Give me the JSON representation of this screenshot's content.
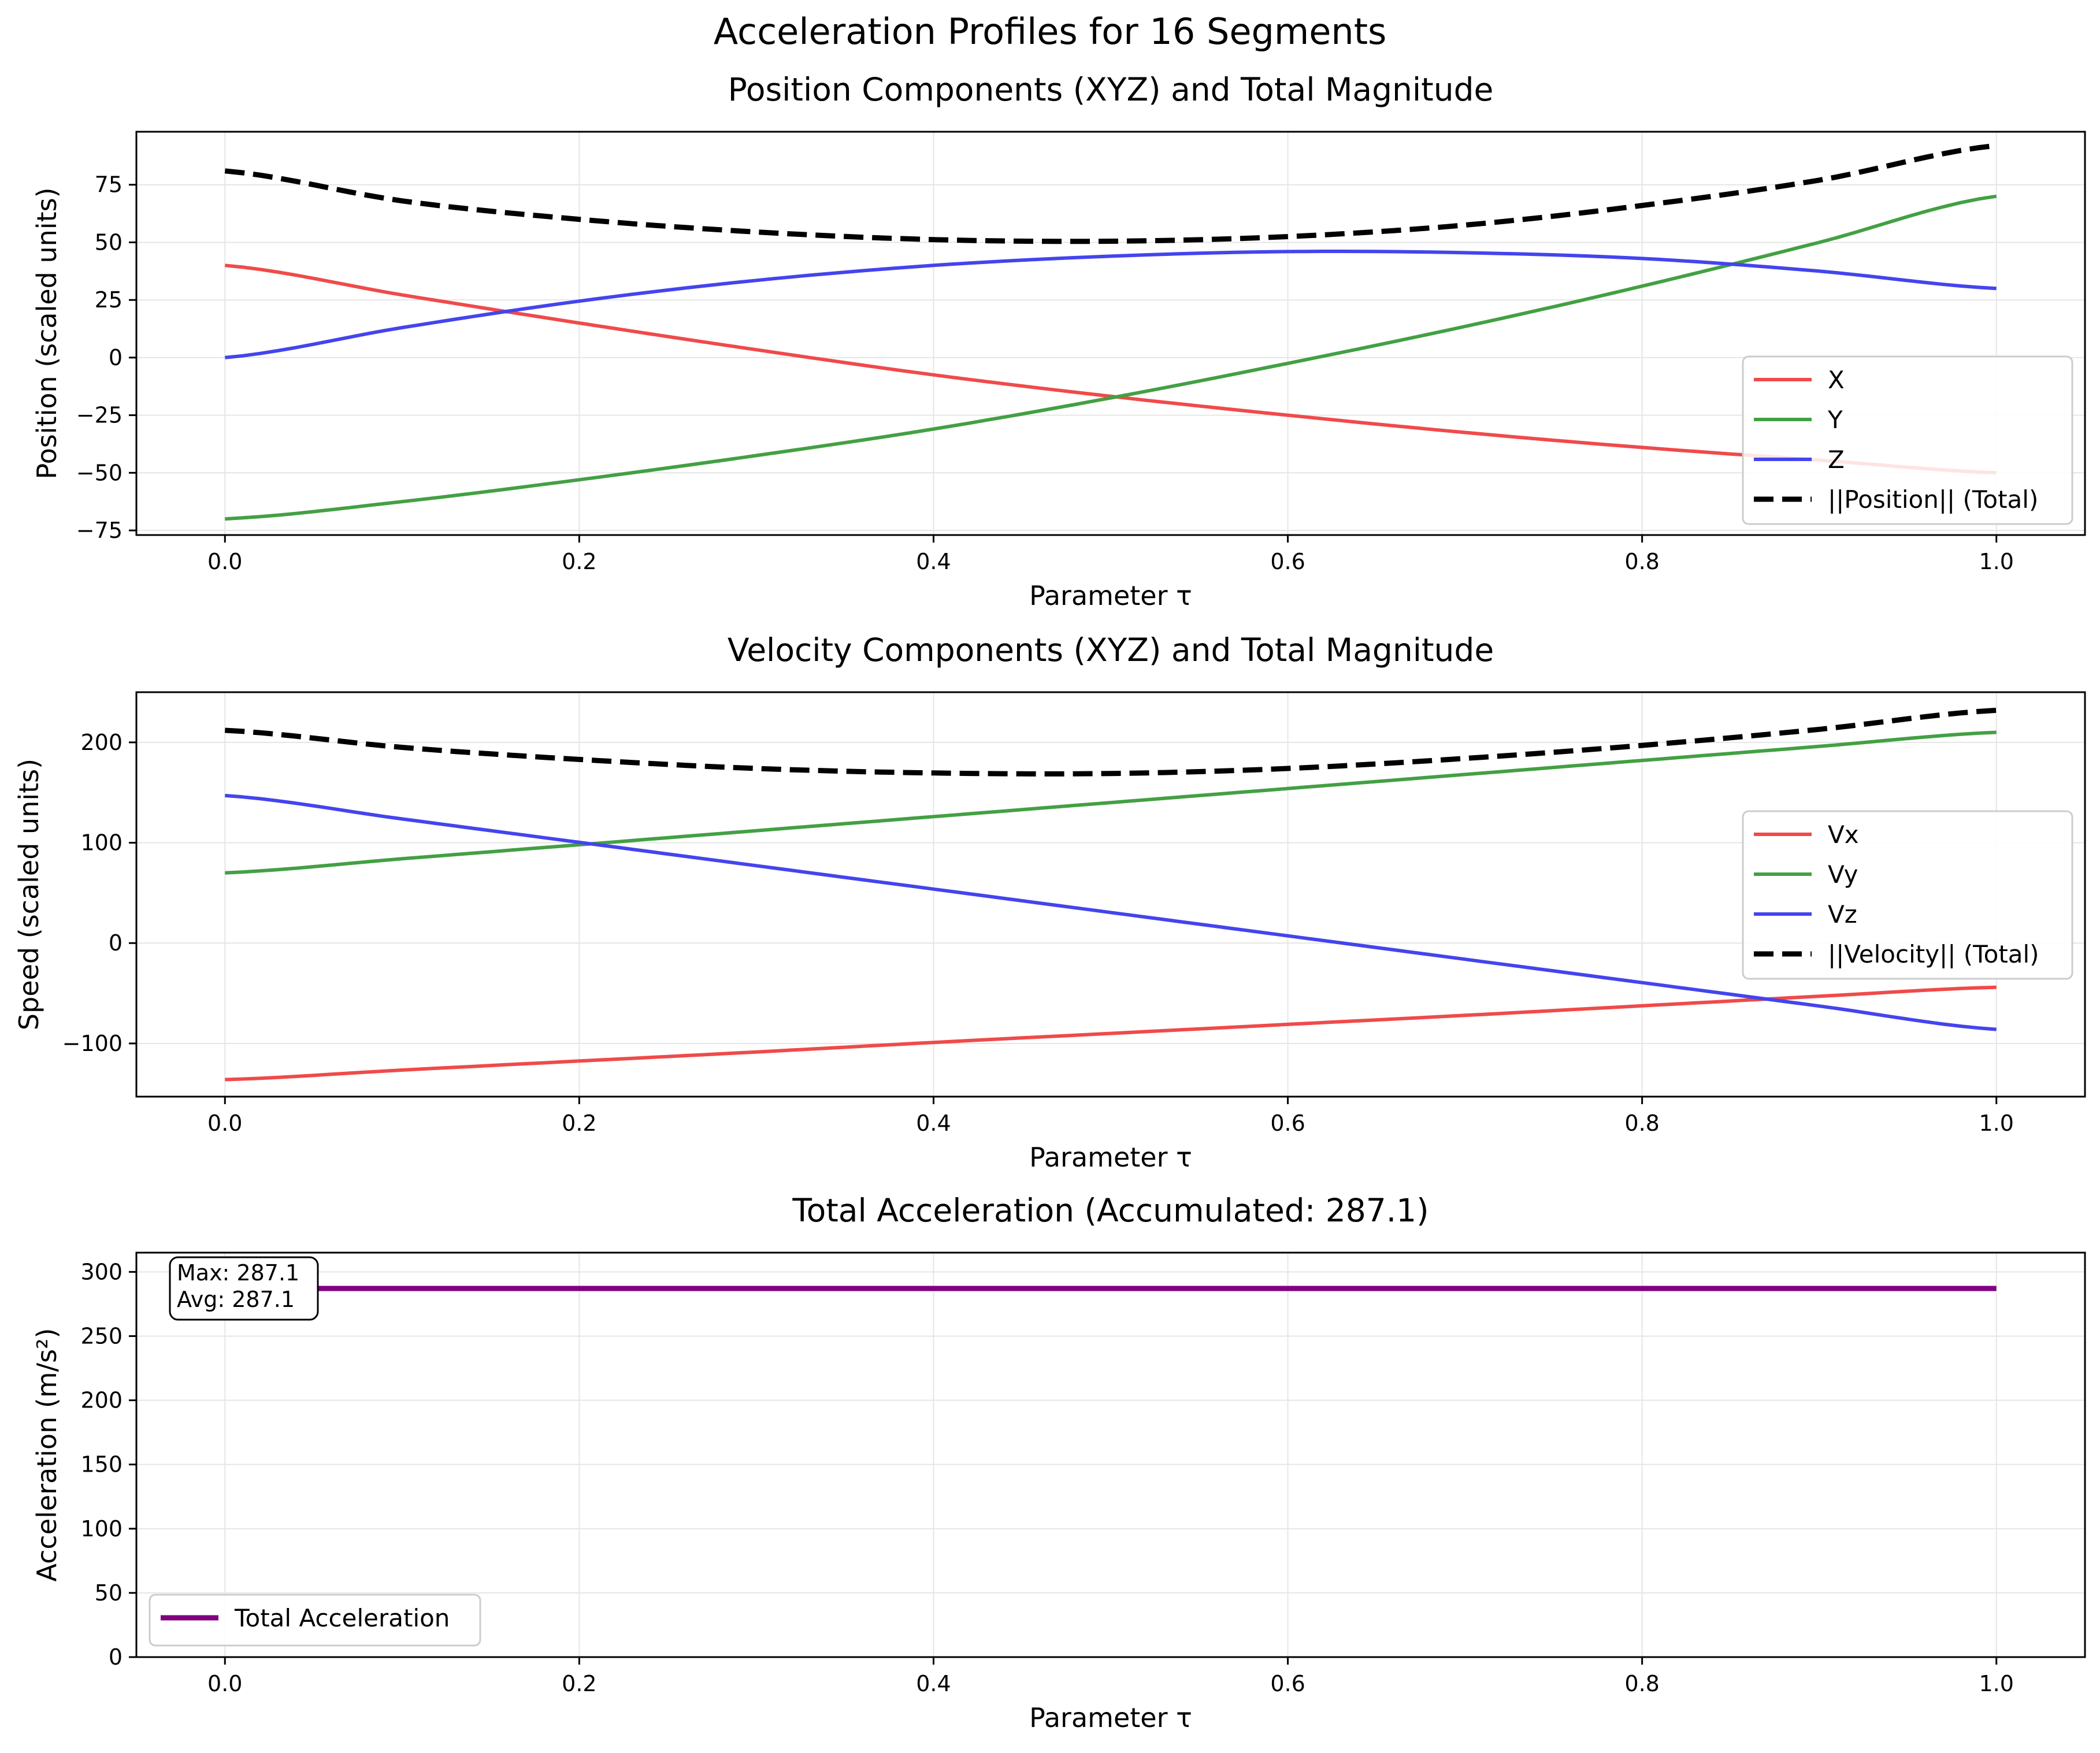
{
  "figure": {
    "suptitle": "Acceleration Profiles for 16 Segments"
  },
  "chart_data": [
    {
      "type": "line",
      "title": "Position Components (XYZ) and Total Magnitude",
      "xlabel": "Parameter τ",
      "ylabel": "Position (scaled units)",
      "xlim": [
        -0.05,
        1.05
      ],
      "ylim": [
        -77,
        98
      ],
      "xticks": [
        0.0,
        0.2,
        0.4,
        0.6,
        0.8,
        1.0
      ],
      "xtick_labels": [
        "0.0",
        "0.2",
        "0.4",
        "0.6",
        "0.8",
        "1.0"
      ],
      "yticks": [
        -75,
        -50,
        -25,
        0,
        25,
        50,
        75
      ],
      "ytick_labels": [
        "−75",
        "−50",
        "−25",
        "0",
        "25",
        "50",
        "75"
      ],
      "grid": true,
      "legend_position": "lower-right",
      "x": [
        0.0,
        0.1,
        0.2,
        0.3,
        0.4,
        0.5,
        0.6,
        0.7,
        0.8,
        0.9,
        1.0
      ],
      "series": [
        {
          "name": "X",
          "color": "#f04a4a",
          "style": "solid",
          "values": [
            40,
            27.2,
            15,
            3.4,
            -7.5,
            -16.8,
            -25,
            -32.5,
            -39,
            -44.5,
            -50
          ]
        },
        {
          "name": "Y",
          "color": "#43a043",
          "style": "solid",
          "values": [
            -70,
            -62.5,
            -53,
            -42.5,
            -31,
            -17.5,
            -2.5,
            13.5,
            31,
            50,
            70
          ]
        },
        {
          "name": "Z",
          "color": "#4444ee",
          "style": "solid",
          "values": [
            0,
            13,
            24.5,
            33.5,
            40,
            44,
            46,
            45.5,
            43,
            37.5,
            30
          ]
        },
        {
          "name": "||Position|| (Total)",
          "color": "#000000",
          "style": "dashed",
          "values": [
            81,
            68,
            60,
            54.5,
            51.2,
            50.5,
            52.5,
            57.5,
            66,
            77,
            92
          ]
        }
      ]
    },
    {
      "type": "line",
      "title": "Velocity Components (XYZ) and Total Magnitude",
      "xlabel": "Parameter τ",
      "ylabel": "Speed (scaled units)",
      "xlim": [
        -0.05,
        1.05
      ],
      "ylim": [
        -153,
        250
      ],
      "xticks": [
        0.0,
        0.2,
        0.4,
        0.6,
        0.8,
        1.0
      ],
      "xtick_labels": [
        "0.0",
        "0.2",
        "0.4",
        "0.6",
        "0.8",
        "1.0"
      ],
      "yticks": [
        -100,
        0,
        100,
        200
      ],
      "ytick_labels": [
        "−100",
        "0",
        "100",
        "200"
      ],
      "grid": true,
      "legend_position": "center-right",
      "x": [
        0.0,
        0.1,
        0.2,
        0.3,
        0.4,
        0.5,
        0.6,
        0.7,
        0.8,
        0.9,
        1.0
      ],
      "series": [
        {
          "name": "Vx",
          "color": "#f04a4a",
          "style": "solid",
          "values": [
            -136,
            -126.5,
            -117.5,
            -108.5,
            -99,
            -90,
            -81,
            -72,
            -62.5,
            -53,
            -44
          ]
        },
        {
          "name": "Vy",
          "color": "#43a043",
          "style": "solid",
          "values": [
            70,
            84,
            98,
            112,
            126,
            140,
            154,
            168,
            182,
            196,
            210
          ]
        },
        {
          "name": "Vz",
          "color": "#4444ee",
          "style": "solid",
          "values": [
            147,
            123.7,
            100.4,
            77.1,
            53.8,
            30.5,
            7.2,
            -16.1,
            -39.4,
            -62.7,
            -86
          ]
        },
        {
          "name": "||Velocity|| (Total)",
          "color": "#000000",
          "style": "dashed",
          "values": [
            212,
            195,
            183,
            174,
            169.5,
            169,
            174,
            184,
            197,
            213,
            232
          ]
        }
      ]
    },
    {
      "type": "line",
      "title": "Total Acceleration (Accumulated: 287.1)",
      "xlabel": "Parameter τ",
      "ylabel": "Acceleration (m/s²)",
      "xlim": [
        -0.05,
        1.05
      ],
      "ylim": [
        0,
        315
      ],
      "xticks": [
        0.0,
        0.2,
        0.4,
        0.6,
        0.8,
        1.0
      ],
      "xtick_labels": [
        "0.0",
        "0.2",
        "0.4",
        "0.6",
        "0.8",
        "1.0"
      ],
      "yticks": [
        0,
        50,
        100,
        150,
        200,
        250,
        300
      ],
      "ytick_labels": [
        "0",
        "50",
        "100",
        "150",
        "200",
        "250",
        "300"
      ],
      "grid": true,
      "legend_position": "lower-left",
      "annotation": [
        "Max: 287.1",
        "Avg: 287.1"
      ],
      "x": [
        0.0,
        1.0
      ],
      "series": [
        {
          "name": "Total Acceleration",
          "color": "#800080",
          "style": "solid",
          "values": [
            287.1,
            287.1
          ]
        }
      ]
    }
  ]
}
